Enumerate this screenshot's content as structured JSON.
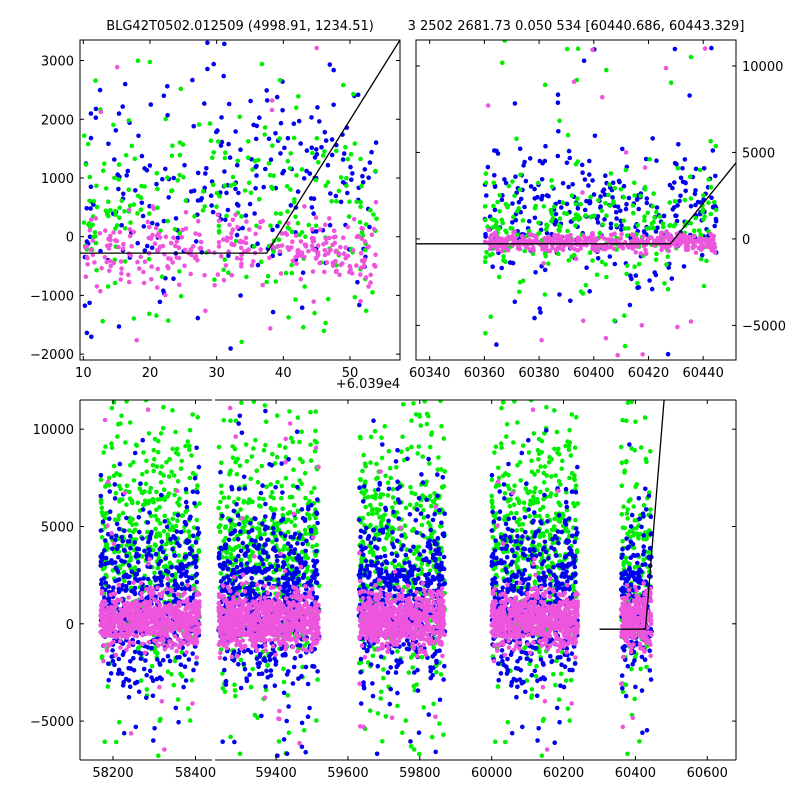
{
  "title_left": "BLG42T0502.012509 (4998.91, 1234.51)",
  "title_right": "3 2502 2681.73 0.050 534 [60440.686, 60443.329]",
  "colors": {
    "band_a": "#0000ee",
    "band_b": "#00ee00",
    "band_c": "#ee55dd",
    "model": "#000000"
  },
  "chart_data": [
    {
      "type": "scatter",
      "panel": "top-left",
      "x_offset_label": "+6.039e4",
      "xlim": [
        9.5,
        57.5
      ],
      "ylim": [
        -2100,
        3350
      ],
      "x_ticks": [
        10,
        20,
        30,
        40,
        50
      ],
      "y_ticks": [
        -2000,
        -1000,
        0,
        1000,
        2000,
        3000
      ],
      "y_tick_labels": [
        "−2000",
        "−1000",
        "0",
        "1000",
        "2000",
        "3000"
      ],
      "model": {
        "x": [
          9.5,
          37.5,
          57.5
        ],
        "y": [
          -280,
          -280,
          3350
        ]
      },
      "series": [
        {
          "color_key": "band_a",
          "x_range": [
            10,
            54
          ],
          "y_center": 900,
          "y_spread": 900,
          "count": 260,
          "outlier_frac": 0.15
        },
        {
          "color_key": "band_b",
          "x_range": [
            10,
            54
          ],
          "y_center": 500,
          "y_spread": 800,
          "count": 260,
          "outlier_frac": 0.15
        },
        {
          "color_key": "band_c",
          "x_range": [
            10,
            54
          ],
          "y_center": -250,
          "y_spread": 300,
          "count": 300,
          "outlier_frac": 0.05
        }
      ]
    },
    {
      "type": "scatter",
      "panel": "top-right",
      "xlim": [
        60335,
        60452
      ],
      "ylim": [
        -7000,
        11500
      ],
      "x_ticks": [
        60340,
        60360,
        60380,
        60400,
        60420,
        60440
      ],
      "y_ticks": [
        -5000,
        0,
        5000,
        10000
      ],
      "y_tick_labels": [
        "−5000",
        "0",
        "5000",
        "10000"
      ],
      "model": {
        "x": [
          60335,
          60428,
          60452
        ],
        "y": [
          -280,
          -280,
          4400
        ]
      },
      "series": [
        {
          "color_key": "band_a",
          "x_range": [
            60360,
            60445
          ],
          "y_center": 1500,
          "y_spread": 1800,
          "count": 320,
          "outlier_frac": 0.12
        },
        {
          "color_key": "band_b",
          "x_range": [
            60360,
            60445
          ],
          "y_center": 800,
          "y_spread": 1500,
          "count": 280,
          "outlier_frac": 0.12
        },
        {
          "color_key": "band_c",
          "x_range": [
            60360,
            60445
          ],
          "y_center": -200,
          "y_spread": 250,
          "count": 420,
          "outlier_frac": 0.04
        }
      ]
    },
    {
      "type": "scatter",
      "panel": "bottom",
      "ylim": [
        -7000,
        11500
      ],
      "y_ticks": [
        -5000,
        0,
        5000,
        10000
      ],
      "y_tick_labels": [
        "−5000",
        "0",
        "5000",
        "10000"
      ],
      "segments": [
        {
          "xlim": [
            58120,
            58440
          ],
          "x_ticks": [
            58200,
            58400
          ],
          "seasons": [
            [
              58170,
              58410
            ]
          ]
        },
        {
          "xlim": [
            59230,
            60680
          ],
          "x_ticks": [
            59400,
            59600,
            59800,
            60000,
            60200,
            60400,
            60600
          ],
          "seasons": [
            [
              59240,
              59520
            ],
            [
              59630,
              59870
            ],
            [
              60000,
              60240
            ],
            [
              60360,
              60445
            ]
          ]
        }
      ],
      "model": {
        "x": [
          60300,
          60428,
          60480
        ],
        "y": [
          -280,
          -280,
          11500
        ]
      }
    }
  ]
}
